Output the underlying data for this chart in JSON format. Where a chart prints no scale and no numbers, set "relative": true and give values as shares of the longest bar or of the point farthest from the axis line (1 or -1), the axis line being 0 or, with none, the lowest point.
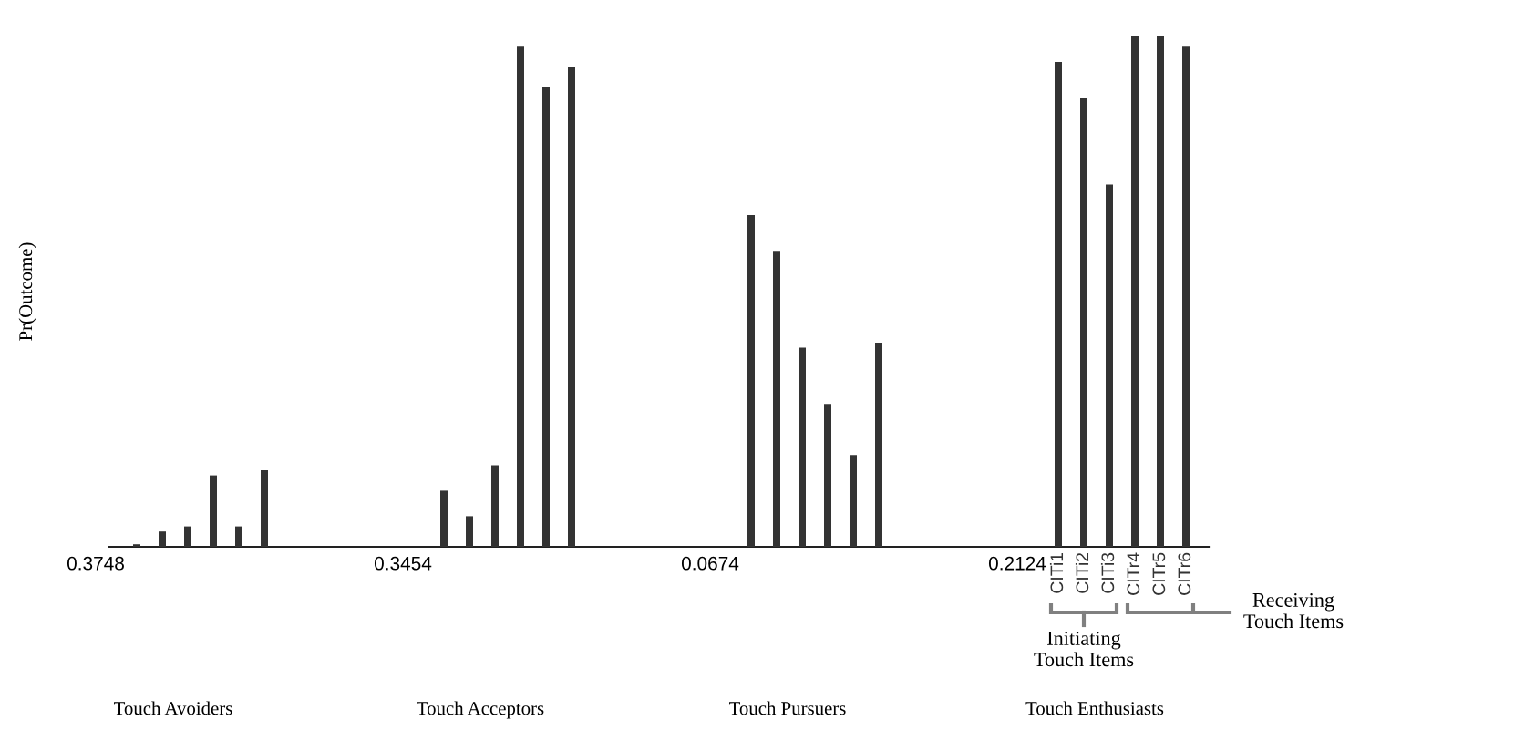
{
  "chart_data": {
    "type": "bar",
    "relative": true,
    "ylabel": "Pr(Outcome)",
    "categories": [
      "Touch Avoiders",
      "Touch Acceptors",
      "Touch Pursuers",
      "Touch Enthusiasts"
    ],
    "series": [
      {
        "name": "CITi1",
        "color": "#333333",
        "values": [
          0.005,
          0.11,
          0.65,
          0.95
        ]
      },
      {
        "name": "CITi2",
        "color": "#333333",
        "values": [
          0.03,
          0.06,
          0.58,
          0.88
        ]
      },
      {
        "name": "CITi3",
        "color": "#333333",
        "values": [
          0.04,
          0.16,
          0.39,
          0.71
        ]
      },
      {
        "name": "CITr4",
        "color": "#333333",
        "values": [
          0.14,
          0.98,
          0.28,
          1.0
        ]
      },
      {
        "name": "CITr5",
        "color": "#333333",
        "values": [
          0.04,
          0.9,
          0.18,
          1.0
        ]
      },
      {
        "name": "CITr6",
        "color": "#333333",
        "values": [
          0.15,
          0.94,
          0.4,
          0.98
        ]
      }
    ],
    "annotations": [
      "0.3748",
      "0.3454",
      "0.0674",
      "0.2124",
      "Receiving\nTouch Items",
      "Initiating\nTouch Items"
    ]
  }
}
